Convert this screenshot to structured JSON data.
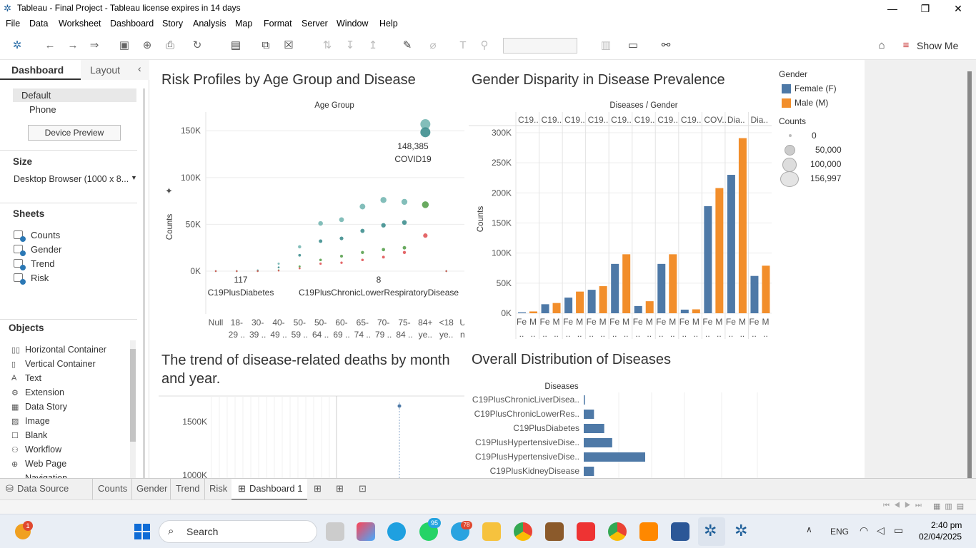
{
  "window": {
    "title": "Tableau - Final Project  - Tableau license expires in 14 days"
  },
  "menu": [
    "File",
    "Data",
    "Worksheet",
    "Dashboard",
    "Story",
    "Analysis",
    "Map",
    "Format",
    "Server",
    "Window",
    "Help"
  ],
  "toolbar": {
    "show_me": "Show Me"
  },
  "left_panel": {
    "tabs": {
      "dashboard": "Dashboard",
      "layout": "Layout"
    },
    "devices": {
      "default": "Default",
      "phone": "Phone",
      "preview_button": "Device Preview"
    },
    "size": {
      "heading": "Size",
      "value": "Desktop Browser (1000 x 8..."
    },
    "sheets": {
      "heading": "Sheets",
      "items": [
        "Counts",
        "Gender",
        "Trend",
        "Risk"
      ]
    },
    "objects": {
      "heading": "Objects",
      "items": [
        "Horizontal Container",
        "Vertical Container",
        "Text",
        "Extension",
        "Data Story",
        "Image",
        "Blank",
        "Workflow",
        "Web Page",
        "Navigation"
      ]
    }
  },
  "dashboard": {
    "risk": {
      "title": "Risk Profiles by Age Group and Disease",
      "col_header": "Age Group",
      "ylabel": "Counts",
      "annotations": {
        "covid_value": "148,385",
        "covid_label": "COVID19",
        "diab_value": "117",
        "diab_label": "C19PlusDiabetes",
        "resp_value": "8",
        "resp_label": "C19PlusChronicLowerRespiratoryDisease"
      }
    },
    "gender": {
      "title": "Gender Disparity in Disease Prevalence",
      "col_header": "Diseases / Gender",
      "ylabel": "Counts"
    },
    "trend": {
      "title": "The trend of disease-related deaths by month and year."
    },
    "distribution": {
      "title": "Overall Distribution of Diseases",
      "col_header": "Diseases"
    },
    "legend": {
      "gender_heading": "Gender",
      "female": "Female (F)",
      "male": "Male (M)",
      "counts_heading": "Counts",
      "sizes": [
        "0",
        "50,000",
        "100,000",
        "156,997"
      ],
      "colors": {
        "female": "#4e79a7",
        "male": "#f28e2b"
      }
    }
  },
  "chart_data": [
    {
      "type": "scatter",
      "title": "Risk Profiles by Age Group and Disease",
      "ylabel": "Counts",
      "categories": [
        "Null 18-29 ..",
        "18- 29 ..",
        "30- 39 ..",
        "40- 49 ..",
        "50- 59 ..",
        "50- 64 ..",
        "60- 69 ..",
        "65- 74 ..",
        "70- 79 ..",
        "75- 84 ..",
        "84+ ye..",
        "<18 ye..",
        "Unk no.."
      ],
      "category_labels_top": [
        "Null",
        "18-",
        "30-",
        "40-",
        "50-",
        "50-",
        "60-",
        "65-",
        "70-",
        "75-",
        "84+",
        "<18",
        "Unk"
      ],
      "category_labels_bottom": [
        "",
        "29 ..",
        "39 ..",
        "49 ..",
        "59 ..",
        "64 ..",
        "69 ..",
        "74 ..",
        "79 ..",
        "84 ..",
        "ye..",
        "ye..",
        "no.."
      ],
      "yticks": [
        "0K",
        "50K",
        "100K",
        "150K"
      ],
      "ylim": [
        0,
        170000
      ],
      "series": [
        {
          "name": "COVID19 (light)",
          "values": [
            0,
            0,
            1000,
            8000,
            26000,
            51000,
            55000,
            69000,
            76000,
            74000,
            157000,
            0,
            0
          ]
        },
        {
          "name": "COVID19",
          "values": [
            0,
            0,
            500,
            4000,
            17000,
            32000,
            35000,
            43000,
            49000,
            52000,
            148385,
            0,
            0
          ]
        },
        {
          "name": "C19 green",
          "values": [
            0,
            0,
            0,
            1000,
            5000,
            12000,
            16000,
            20000,
            23000,
            25000,
            71000,
            0,
            0
          ]
        },
        {
          "name": "C19 red",
          "values": [
            0,
            0,
            0,
            500,
            3000,
            8000,
            9000,
            12000,
            15000,
            20000,
            38000,
            0,
            0
          ]
        }
      ]
    },
    {
      "type": "bar",
      "title": "Gender Disparity in Disease Prevalence",
      "ylabel": "Counts",
      "categories": [
        "C19..",
        "C19..",
        "C19..",
        "C19..",
        "C19..",
        "C19..",
        "C19..",
        "C19..",
        "COV..",
        "Dia..",
        "Dia.."
      ],
      "yticks": [
        "0K",
        "50K",
        "100K",
        "150K",
        "200K",
        "250K",
        "300K"
      ],
      "ylim": [
        0,
        300000
      ],
      "series": [
        {
          "name": "Female (F)",
          "values": [
            1500,
            15000,
            26000,
            39000,
            82000,
            12000,
            82000,
            6000,
            178000,
            230000,
            62000
          ]
        },
        {
          "name": "Male (M)",
          "values": [
            3000,
            17000,
            36000,
            45000,
            98000,
            20000,
            98000,
            6500,
            208000,
            291000,
            79000
          ]
        }
      ]
    },
    {
      "type": "line",
      "title": "The trend of disease-related deaths by month and year.",
      "yticks": [
        "1500K",
        "1000K"
      ]
    },
    {
      "type": "bar",
      "title": "Overall Distribution of Diseases",
      "categories": [
        "C19PlusChronicLiverDisea..",
        "C19PlusChronicLowerRes..",
        "C19PlusDiabetes",
        "C19PlusHypertensiveDise..",
        "C19PlusHypertensiveDise..",
        "C19PlusKidneyDisease"
      ],
      "values": [
        1000,
        9000,
        18000,
        25000,
        54000,
        9000
      ]
    }
  ],
  "tabs": {
    "data_source": "Data Source",
    "sheets": [
      "Counts",
      "Gender",
      "Trend",
      "Risk"
    ],
    "active": "Dashboard 1"
  },
  "taskbar": {
    "search": "Search",
    "lang": "ENG",
    "time": "2:40 pm",
    "date": "02/04/2025",
    "whatsapp_badge": "95",
    "telegram_badge": "78",
    "weather_badge": "1"
  }
}
